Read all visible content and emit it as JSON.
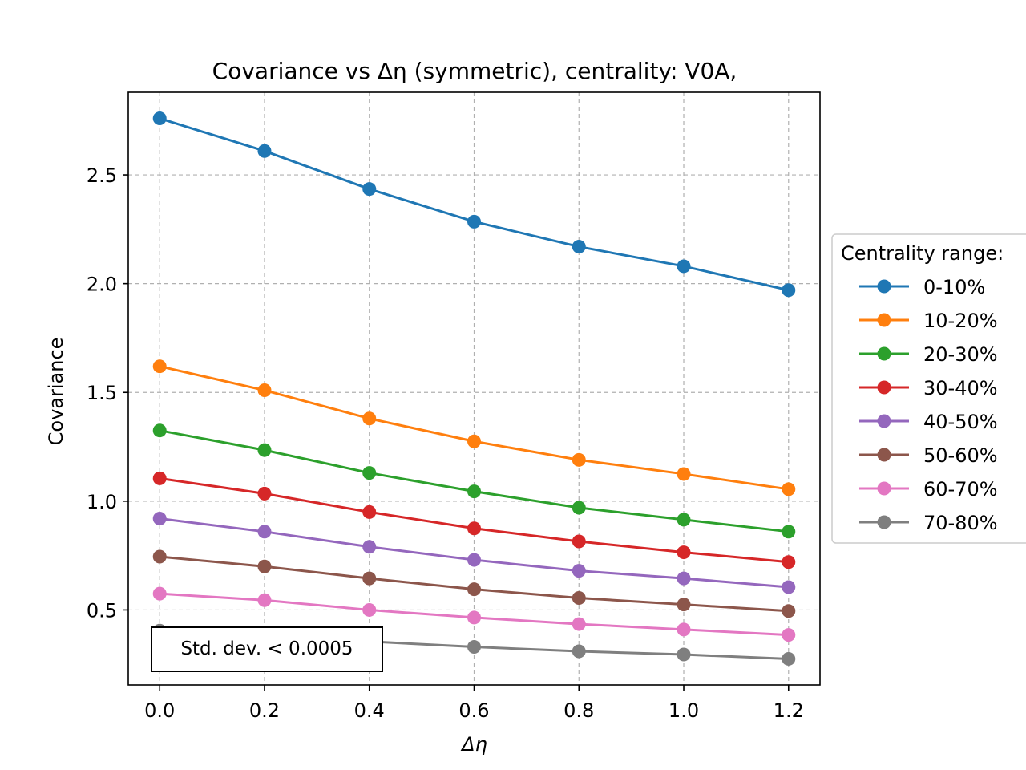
{
  "chart_data": {
    "type": "line",
    "title": "Covariance vs Δη (symmetric), centrality: V0A,",
    "xlabel": "Δη",
    "ylabel": "Covariance",
    "x": [
      0.0,
      0.2,
      0.4,
      0.6,
      0.8,
      1.0,
      1.2
    ],
    "xticks": [
      "0.0",
      "0.2",
      "0.4",
      "0.6",
      "0.8",
      "1.0",
      "1.2"
    ],
    "yticks": [
      "0.5",
      "1.0",
      "1.5",
      "2.0",
      "2.5"
    ],
    "xlim": [
      -0.06,
      1.26
    ],
    "ylim": [
      0.155,
      2.88
    ],
    "grid": true,
    "legend": {
      "title": "Centrality range:",
      "placement": "right, outside"
    },
    "annotation": "Std. dev. < 0.0005",
    "series": [
      {
        "name": "0-10%",
        "color": "#1f77b4",
        "values": [
          2.76,
          2.61,
          2.435,
          2.285,
          2.17,
          2.08,
          1.97
        ]
      },
      {
        "name": "10-20%",
        "color": "#ff7f0e",
        "values": [
          1.62,
          1.51,
          1.38,
          1.275,
          1.19,
          1.125,
          1.055
        ]
      },
      {
        "name": "20-30%",
        "color": "#2ca02c",
        "values": [
          1.325,
          1.235,
          1.13,
          1.045,
          0.97,
          0.915,
          0.86
        ]
      },
      {
        "name": "30-40%",
        "color": "#d62728",
        "values": [
          1.105,
          1.035,
          0.95,
          0.875,
          0.815,
          0.765,
          0.72
        ]
      },
      {
        "name": "40-50%",
        "color": "#9467bd",
        "values": [
          0.92,
          0.86,
          0.79,
          0.73,
          0.68,
          0.645,
          0.605
        ]
      },
      {
        "name": "50-60%",
        "color": "#8c564b",
        "values": [
          0.745,
          0.7,
          0.645,
          0.595,
          0.555,
          0.525,
          0.495
        ]
      },
      {
        "name": "60-70%",
        "color": "#e377c2",
        "values": [
          0.575,
          0.545,
          0.5,
          0.465,
          0.435,
          0.41,
          0.385
        ]
      },
      {
        "name": "70-80%",
        "color": "#7f7f7f",
        "values": [
          0.405,
          0.385,
          0.355,
          0.33,
          0.31,
          0.295,
          0.275
        ]
      }
    ]
  }
}
